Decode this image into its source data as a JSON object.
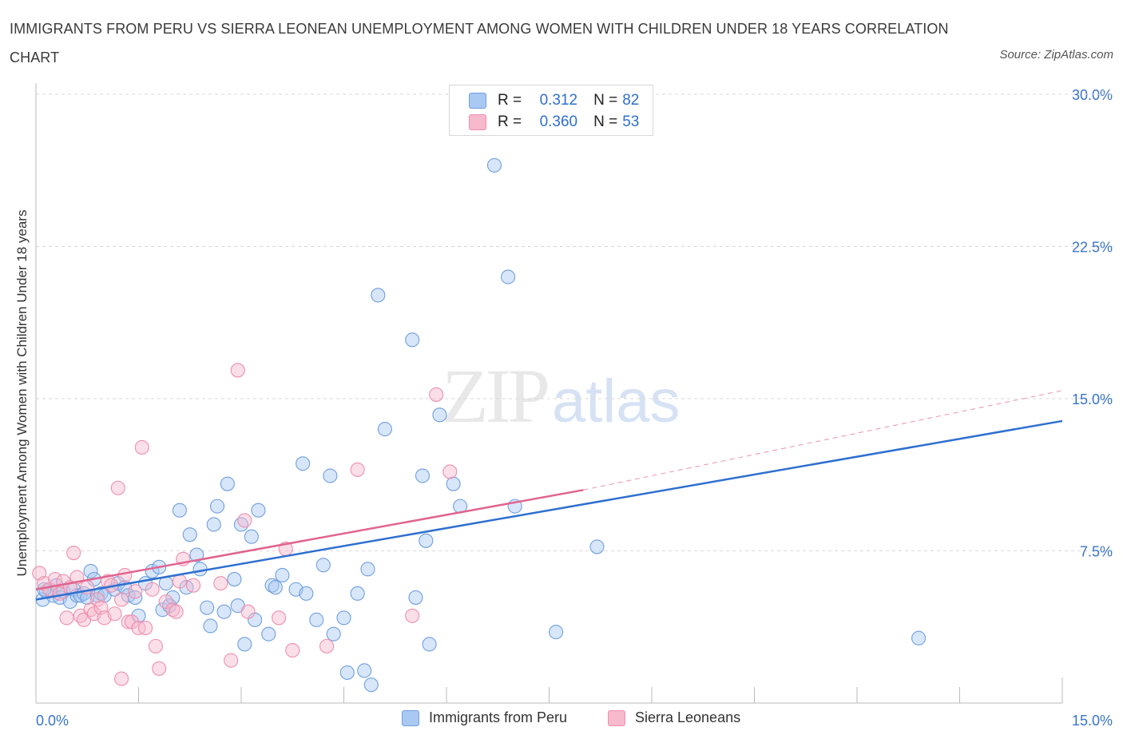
{
  "title": "IMMIGRANTS FROM PERU VS SIERRA LEONEAN UNEMPLOYMENT AMONG WOMEN WITH CHILDREN UNDER 18 YEARS CORRELATION CHART",
  "source": "Source: ZipAtlas.com",
  "watermark": {
    "zip": "ZIP",
    "atlas": "atlas"
  },
  "legend": {
    "r_label": "R =",
    "n_label": "N =",
    "rows": [
      {
        "r": "0.312",
        "n": "82"
      },
      {
        "r": "0.360",
        "n": "53"
      }
    ]
  },
  "bottom_legend": [
    "Immigrants from Peru",
    "Sierra Leoneans"
  ],
  "colors": {
    "peru_fill": "#a9c8f2",
    "peru_stroke": "#6f9fe0",
    "peru_line": "#2f6fd0",
    "sl_fill": "#f7b9cc",
    "sl_stroke": "#ee8fae",
    "sl_line": "#e0648f",
    "tick_text": "#3a74c9",
    "grid": "#d9d9d9"
  },
  "chart_data": {
    "type": "scatter",
    "title": "IMMIGRANTS FROM PERU VS SIERRA LEONEAN UNEMPLOYMENT AMONG WOMEN WITH CHILDREN UNDER 18 YEARS CORRELATION CHART",
    "xlabel": "",
    "ylabel": "Unemployment Among Women with Children Under 18 years",
    "xlim": [
      0,
      15
    ],
    "ylim": [
      0,
      30
    ],
    "x_tick_labels": [
      "0.0%",
      "15.0%"
    ],
    "y_ticks": [
      7.5,
      15.0,
      22.5,
      30.0
    ],
    "y_tick_labels": [
      "7.5%",
      "15.0%",
      "22.5%",
      "30.0%"
    ],
    "grid": "horizontal dashed",
    "legend_position": "top-center",
    "series": [
      {
        "name": "Immigrants from Peru",
        "R": 0.312,
        "N": 82,
        "trend": {
          "x": [
            0,
            15
          ],
          "y": [
            5.1,
            13.9
          ],
          "style": "solid"
        },
        "points": [
          [
            0.1,
            5.1
          ],
          [
            0.15,
            5.5
          ],
          [
            0.25,
            5.3
          ],
          [
            0.3,
            5.8
          ],
          [
            0.35,
            5.2
          ],
          [
            0.4,
            5.5
          ],
          [
            0.5,
            5.0
          ],
          [
            0.55,
            5.6
          ],
          [
            0.6,
            5.3
          ],
          [
            0.65,
            5.3
          ],
          [
            0.7,
            5.4
          ],
          [
            0.75,
            5.2
          ],
          [
            0.8,
            6.5
          ],
          [
            0.85,
            6.1
          ],
          [
            0.9,
            5.3
          ],
          [
            0.95,
            5.4
          ],
          [
            1.0,
            5.3
          ],
          [
            1.15,
            5.6
          ],
          [
            1.2,
            5.9
          ],
          [
            1.3,
            5.7
          ],
          [
            1.35,
            5.3
          ],
          [
            1.45,
            5.2
          ],
          [
            1.5,
            4.3
          ],
          [
            1.6,
            5.9
          ],
          [
            1.7,
            6.5
          ],
          [
            1.8,
            6.7
          ],
          [
            1.85,
            4.6
          ],
          [
            1.9,
            5.9
          ],
          [
            1.95,
            4.8
          ],
          [
            2.0,
            5.2
          ],
          [
            2.1,
            9.5
          ],
          [
            2.2,
            5.7
          ],
          [
            2.25,
            8.3
          ],
          [
            2.35,
            7.3
          ],
          [
            2.4,
            6.6
          ],
          [
            2.5,
            4.7
          ],
          [
            2.55,
            3.8
          ],
          [
            2.6,
            8.8
          ],
          [
            2.65,
            9.7
          ],
          [
            2.75,
            4.5
          ],
          [
            2.8,
            10.8
          ],
          [
            2.9,
            6.1
          ],
          [
            2.95,
            4.8
          ],
          [
            3.0,
            8.8
          ],
          [
            3.05,
            2.9
          ],
          [
            3.15,
            8.2
          ],
          [
            3.2,
            4.1
          ],
          [
            3.25,
            9.5
          ],
          [
            3.4,
            3.4
          ],
          [
            3.45,
            5.8
          ],
          [
            3.5,
            5.7
          ],
          [
            3.6,
            6.3
          ],
          [
            3.8,
            5.6
          ],
          [
            3.9,
            11.8
          ],
          [
            3.95,
            5.4
          ],
          [
            4.1,
            4.1
          ],
          [
            4.2,
            6.8
          ],
          [
            4.3,
            11.2
          ],
          [
            4.35,
            3.4
          ],
          [
            4.5,
            4.2
          ],
          [
            4.55,
            1.5
          ],
          [
            4.7,
            5.4
          ],
          [
            4.8,
            1.6
          ],
          [
            4.85,
            6.6
          ],
          [
            4.9,
            0.9
          ],
          [
            5.0,
            20.1
          ],
          [
            5.1,
            13.5
          ],
          [
            5.5,
            17.9
          ],
          [
            5.55,
            5.2
          ],
          [
            5.65,
            11.2
          ],
          [
            5.7,
            8.0
          ],
          [
            5.75,
            2.9
          ],
          [
            5.9,
            14.2
          ],
          [
            6.1,
            10.8
          ],
          [
            6.2,
            9.7
          ],
          [
            6.7,
            26.5
          ],
          [
            6.9,
            21.0
          ],
          [
            7.0,
            9.7
          ],
          [
            7.6,
            3.5
          ],
          [
            8.2,
            7.7
          ],
          [
            12.9,
            3.2
          ],
          [
            0.12,
            5.6
          ]
        ]
      },
      {
        "name": "Sierra Leoneans",
        "R": 0.36,
        "N": 53,
        "trend": {
          "x": [
            0,
            8.0,
            15
          ],
          "y": [
            5.6,
            10.5,
            15.4
          ],
          "style": "solid to 8.0, dashed beyond"
        },
        "points": [
          [
            0.05,
            6.4
          ],
          [
            0.12,
            5.9
          ],
          [
            0.2,
            5.6
          ],
          [
            0.28,
            6.1
          ],
          [
            0.35,
            5.4
          ],
          [
            0.4,
            6.0
          ],
          [
            0.45,
            4.2
          ],
          [
            0.5,
            5.7
          ],
          [
            0.55,
            7.4
          ],
          [
            0.6,
            6.2
          ],
          [
            0.65,
            4.3
          ],
          [
            0.7,
            4.1
          ],
          [
            0.75,
            5.7
          ],
          [
            0.8,
            4.6
          ],
          [
            0.85,
            4.4
          ],
          [
            0.9,
            5.1
          ],
          [
            0.95,
            4.7
          ],
          [
            1.0,
            4.2
          ],
          [
            1.05,
            6.0
          ],
          [
            1.1,
            5.8
          ],
          [
            1.15,
            4.4
          ],
          [
            1.2,
            10.6
          ],
          [
            1.25,
            5.1
          ],
          [
            1.3,
            6.3
          ],
          [
            1.35,
            4.0
          ],
          [
            1.4,
            4.0
          ],
          [
            1.45,
            5.5
          ],
          [
            1.5,
            3.7
          ],
          [
            1.55,
            12.6
          ],
          [
            1.6,
            3.7
          ],
          [
            1.7,
            5.6
          ],
          [
            1.75,
            2.8
          ],
          [
            1.8,
            1.7
          ],
          [
            1.9,
            5.0
          ],
          [
            2.0,
            4.6
          ],
          [
            2.05,
            4.5
          ],
          [
            2.1,
            6.0
          ],
          [
            2.15,
            7.1
          ],
          [
            2.3,
            5.8
          ],
          [
            2.7,
            5.9
          ],
          [
            2.85,
            2.1
          ],
          [
            2.95,
            16.4
          ],
          [
            3.05,
            9.0
          ],
          [
            3.1,
            4.5
          ],
          [
            3.55,
            4.2
          ],
          [
            3.65,
            7.6
          ],
          [
            3.75,
            2.6
          ],
          [
            4.25,
            2.8
          ],
          [
            4.7,
            11.5
          ],
          [
            5.5,
            4.3
          ],
          [
            5.85,
            15.2
          ],
          [
            6.05,
            11.4
          ],
          [
            1.25,
            1.2
          ]
        ]
      }
    ]
  }
}
